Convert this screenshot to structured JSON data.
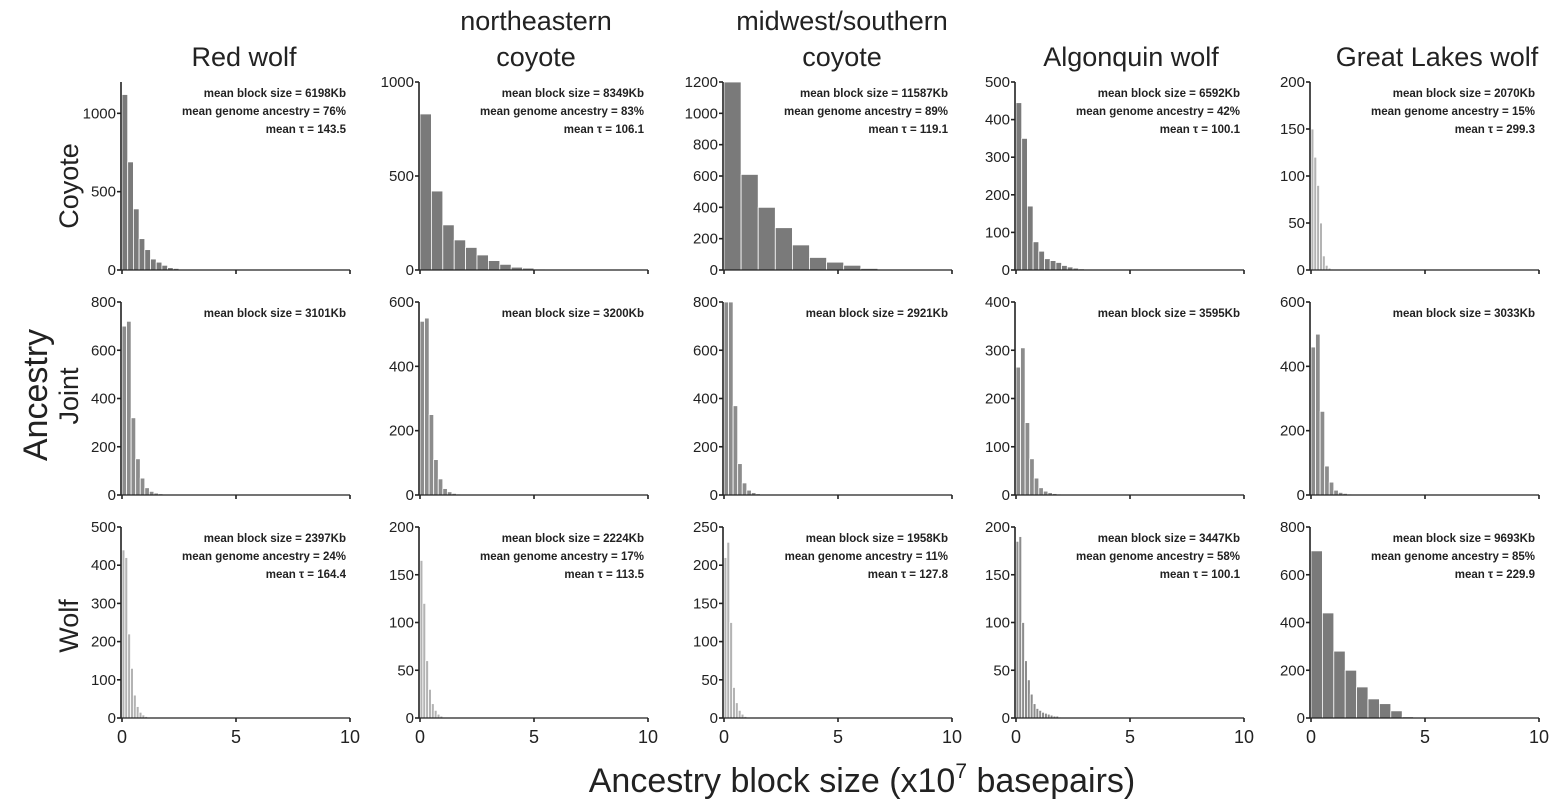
{
  "columns": [
    "Red wolf",
    "northeastern coyote",
    "midwest/southern coyote",
    "Algonquin wolf",
    "Great Lakes wolf"
  ],
  "column_title_lines": [
    [
      "Red wolf"
    ],
    [
      "northeastern",
      "coyote"
    ],
    [
      "midwest/southern",
      "coyote"
    ],
    [
      "Algonquin wolf"
    ],
    [
      "Great Lakes wolf"
    ]
  ],
  "rows": [
    "Coyote",
    "Joint",
    "Wolf"
  ],
  "row_group_label": "Ancestry",
  "xlabel_main": "Ancestry block size (x10",
  "xlabel_sup": "7",
  "xlabel_end": " basepairs)",
  "colors": {
    "bar_dark": "#7a7a7a",
    "bar_mid": "#8c8c8c",
    "bar_light": "#b3b3b3",
    "axis": "#222222"
  },
  "chart_data": {
    "type": "bar",
    "xlim": [
      0,
      10
    ],
    "xticks": [
      0,
      5,
      10
    ],
    "panels": [
      {
        "row": 0,
        "col": 0,
        "ylim": [
          0,
          1200
        ],
        "yticks": [
          0,
          500,
          1000
        ],
        "bin_width": 0.25,
        "shade": "dark",
        "annotations": [
          "mean block size = 6198Kb",
          "mean genome ancestry = 76%",
          "mean τ = 143.5"
        ],
        "values": [
          1120,
          690,
          390,
          200,
          130,
          70,
          50,
          30,
          15,
          10,
          5,
          4,
          3,
          2
        ]
      },
      {
        "row": 0,
        "col": 1,
        "ylim": [
          0,
          1000
        ],
        "yticks": [
          0,
          500,
          1000
        ],
        "bin_width": 0.5,
        "shade": "dark",
        "annotations": [
          "mean block size = 8349Kb",
          "mean genome ancestry = 83%",
          "mean τ = 106.1"
        ],
        "values": [
          830,
          420,
          240,
          160,
          120,
          80,
          50,
          30,
          15,
          10,
          5,
          4,
          3,
          2
        ]
      },
      {
        "row": 0,
        "col": 2,
        "ylim": [
          0,
          1200
        ],
        "yticks": [
          0,
          200,
          400,
          600,
          800,
          1000,
          1200
        ],
        "bin_width": 0.75,
        "shade": "dark",
        "annotations": [
          "mean block size = 11587Kb",
          "mean genome ancestry = 89%",
          "mean τ = 119.1"
        ],
        "values": [
          1200,
          610,
          400,
          270,
          160,
          80,
          50,
          30,
          10,
          5
        ]
      },
      {
        "row": 0,
        "col": 3,
        "ylim": [
          0,
          500
        ],
        "yticks": [
          0,
          100,
          200,
          300,
          400,
          500
        ],
        "bin_width": 0.25,
        "shade": "dark",
        "annotations": [
          "mean block size = 6592Kb",
          "mean genome ancestry = 42%",
          "mean τ = 100.1"
        ],
        "values": [
          445,
          350,
          170,
          75,
          50,
          30,
          25,
          20,
          12,
          8,
          5,
          3,
          2,
          2
        ]
      },
      {
        "row": 0,
        "col": 4,
        "ylim": [
          0,
          200
        ],
        "yticks": [
          0,
          50,
          100,
          150,
          200
        ],
        "bin_width": 0.125,
        "shade": "light",
        "annotations": [
          "mean block size = 2070Kb",
          "mean genome ancestry = 15%",
          "mean τ = 299.3"
        ],
        "values": [
          150,
          120,
          90,
          50,
          15,
          5,
          2,
          1
        ]
      },
      {
        "row": 1,
        "col": 0,
        "ylim": [
          0,
          800
        ],
        "yticks": [
          0,
          200,
          400,
          600,
          800
        ],
        "bin_width": 0.2,
        "shade": "mid",
        "annotations": [
          "mean block size = 3101Kb"
        ],
        "values": [
          700,
          720,
          320,
          150,
          70,
          30,
          15,
          8,
          5,
          3
        ]
      },
      {
        "row": 1,
        "col": 1,
        "ylim": [
          0,
          600
        ],
        "yticks": [
          0,
          200,
          400,
          600
        ],
        "bin_width": 0.2,
        "shade": "mid",
        "annotations": [
          "mean block size = 3200Kb"
        ],
        "values": [
          540,
          550,
          250,
          110,
          50,
          20,
          10,
          5,
          3,
          2
        ]
      },
      {
        "row": 1,
        "col": 2,
        "ylim": [
          0,
          800
        ],
        "yticks": [
          0,
          200,
          400,
          600,
          800
        ],
        "bin_width": 0.2,
        "shade": "mid",
        "annotations": [
          "mean block size = 2921Kb"
        ],
        "values": [
          800,
          800,
          370,
          130,
          50,
          20,
          10,
          5,
          3,
          2
        ]
      },
      {
        "row": 1,
        "col": 3,
        "ylim": [
          0,
          400
        ],
        "yticks": [
          0,
          100,
          200,
          300,
          400
        ],
        "bin_width": 0.2,
        "shade": "mid",
        "annotations": [
          "mean block size = 3595Kb"
        ],
        "values": [
          265,
          305,
          150,
          75,
          35,
          15,
          8,
          5,
          3,
          2
        ]
      },
      {
        "row": 1,
        "col": 4,
        "ylim": [
          0,
          600
        ],
        "yticks": [
          0,
          200,
          400,
          600
        ],
        "bin_width": 0.2,
        "shade": "mid",
        "annotations": [
          "mean block size = 3033Kb"
        ],
        "values": [
          460,
          500,
          260,
          90,
          40,
          15,
          8,
          5,
          3,
          2
        ]
      },
      {
        "row": 2,
        "col": 0,
        "ylim": [
          0,
          500
        ],
        "yticks": [
          0,
          100,
          200,
          300,
          400,
          500
        ],
        "bin_width": 0.125,
        "shade": "light",
        "annotations": [
          "mean block size = 2397Kb",
          "mean genome ancestry = 24%",
          "mean τ = 164.4"
        ],
        "values": [
          440,
          420,
          220,
          130,
          60,
          30,
          15,
          8,
          4,
          2
        ]
      },
      {
        "row": 2,
        "col": 1,
        "ylim": [
          0,
          200
        ],
        "yticks": [
          0,
          50,
          100,
          150,
          200
        ],
        "bin_width": 0.125,
        "shade": "light",
        "annotations": [
          "mean block size = 2224Kb",
          "mean genome ancestry = 17%",
          "mean τ = 113.5"
        ],
        "values": [
          165,
          120,
          60,
          30,
          15,
          8,
          4,
          2
        ]
      },
      {
        "row": 2,
        "col": 2,
        "ylim": [
          0,
          250
        ],
        "yticks": [
          0,
          50,
          100,
          150,
          200,
          250
        ],
        "bin_width": 0.125,
        "shade": "light",
        "annotations": [
          "mean block size = 1958Kb",
          "mean genome ancestry = 11%",
          "mean τ = 127.8"
        ],
        "values": [
          210,
          230,
          125,
          40,
          20,
          10,
          5,
          2
        ]
      },
      {
        "row": 2,
        "col": 3,
        "ylim": [
          0,
          200
        ],
        "yticks": [
          0,
          50,
          100,
          150,
          200
        ],
        "bin_width": 0.125,
        "shade": "mid",
        "annotations": [
          "mean block size = 3447Kb",
          "mean genome ancestry = 58%",
          "mean τ = 100.1"
        ],
        "values": [
          185,
          190,
          100,
          60,
          40,
          25,
          15,
          10,
          8,
          6,
          5,
          4,
          3,
          2,
          2,
          1
        ]
      },
      {
        "row": 2,
        "col": 4,
        "ylim": [
          0,
          800
        ],
        "yticks": [
          0,
          200,
          400,
          600,
          800
        ],
        "bin_width": 0.5,
        "shade": "dark",
        "annotations": [
          "mean block size = 9693Kb",
          "mean genome ancestry = 85%",
          "mean τ = 229.9"
        ],
        "values": [
          700,
          440,
          280,
          200,
          130,
          80,
          60,
          30,
          5,
          3,
          2
        ]
      }
    ]
  }
}
